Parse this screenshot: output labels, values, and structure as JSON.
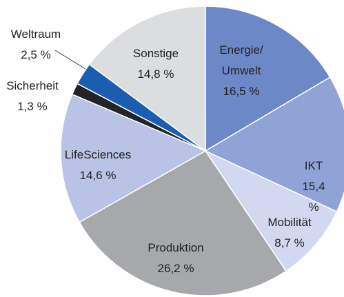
{
  "chart_data": {
    "type": "pie",
    "categories": [
      "Energie/\nUmwelt",
      "IKT",
      "Mobilität",
      "Produktion",
      "LifeSciences",
      "Sicherheit",
      "Weltraum",
      "Sonstige"
    ],
    "values": [
      16.5,
      15.4,
      8.7,
      26.2,
      14.6,
      1.3,
      2.5,
      14.8
    ],
    "value_labels": [
      "16,5 %",
      "15,4 %",
      "8,7 %",
      "26,2 %",
      "14,6 %",
      "1,3 %",
      "2,5 %",
      "14,8 %"
    ],
    "colors": [
      "#6c88c7",
      "#8fa3d7",
      "#d2d8ef",
      "#a7a8ab",
      "#b9c3e5",
      "#232427",
      "#1a5db1",
      "#dcdddf"
    ]
  }
}
